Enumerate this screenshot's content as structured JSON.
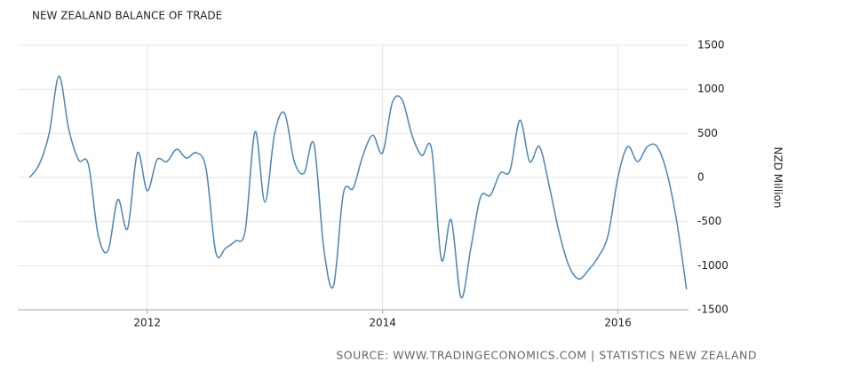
{
  "chart_data": {
    "type": "line",
    "title": "NEW ZEALAND BALANCE OF TRADE",
    "y_label": "NZD Million",
    "source": "SOURCE: WWW.TRADINGECONOMICS.COM | STATISTICS NEW ZEALAND",
    "x": [
      2011,
      2011.083,
      2011.167,
      2011.25,
      2011.333,
      2011.417,
      2011.5,
      2011.583,
      2011.667,
      2011.75,
      2011.833,
      2011.917,
      2012,
      2012.083,
      2012.167,
      2012.25,
      2012.333,
      2012.417,
      2012.5,
      2012.583,
      2012.667,
      2012.75,
      2012.833,
      2012.917,
      2013,
      2013.083,
      2013.167,
      2013.25,
      2013.333,
      2013.417,
      2013.5,
      2013.583,
      2013.667,
      2013.75,
      2013.833,
      2013.917,
      2014,
      2014.083,
      2014.167,
      2014.25,
      2014.333,
      2014.417,
      2014.5,
      2014.583,
      2014.667,
      2014.75,
      2014.833,
      2014.917,
      2015,
      2015.083,
      2015.167,
      2015.25,
      2015.333,
      2015.417,
      2015.5,
      2015.583,
      2015.667,
      2015.75,
      2015.833,
      2015.917,
      2016,
      2016.083,
      2016.167,
      2016.25,
      2016.333,
      2016.417,
      2016.5,
      2016.583
    ],
    "series": [
      {
        "name": "Balance of Trade",
        "color": "#4a86b8",
        "values": [
          0,
          150,
          500,
          1150,
          550,
          200,
          150,
          -650,
          -830,
          -250,
          -580,
          280,
          -150,
          200,
          180,
          320,
          220,
          280,
          100,
          -850,
          -800,
          -720,
          -600,
          520,
          -280,
          500,
          730,
          180,
          50,
          380,
          -800,
          -1230,
          -180,
          -120,
          250,
          480,
          280,
          850,
          880,
          480,
          250,
          320,
          -930,
          -480,
          -1360,
          -800,
          -220,
          -200,
          50,
          80,
          650,
          180,
          350,
          -100,
          -620,
          -1000,
          -1150,
          -1050,
          -900,
          -650,
          0,
          350,
          180,
          350,
          350,
          50,
          -500,
          -1270
        ]
      }
    ],
    "xlim": [
      2010.9,
      2016.6
    ],
    "xticks": [
      2012,
      2014,
      2016
    ],
    "ylim": [
      -1500,
      1500
    ],
    "yticks": [
      -1500,
      -1000,
      -500,
      0,
      500,
      1000,
      1500
    ],
    "grid": true
  }
}
